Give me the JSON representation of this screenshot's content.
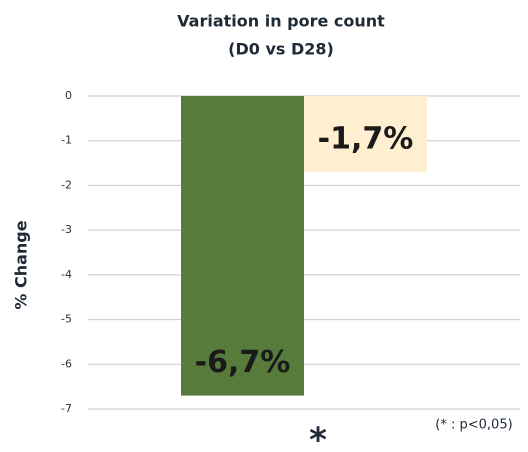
{
  "chart_data": {
    "type": "bar",
    "title": "Variation in pore count",
    "subtitle": "(D0 vs D28)",
    "y_label": "% Change",
    "categories": [
      null,
      null
    ],
    "values": [
      -6.7,
      -1.7
    ],
    "value_labels": [
      "-6,7%",
      "-1,7%"
    ],
    "colors": [
      "#577b3a",
      "#fdefcf"
    ],
    "ylim": [
      -7,
      0
    ],
    "yticks": [
      0,
      -1,
      -2,
      -3,
      -4,
      -5,
      -6,
      -7
    ],
    "grid": true,
    "annotations": [
      "*",
      "(* : p<0,05)"
    ]
  }
}
